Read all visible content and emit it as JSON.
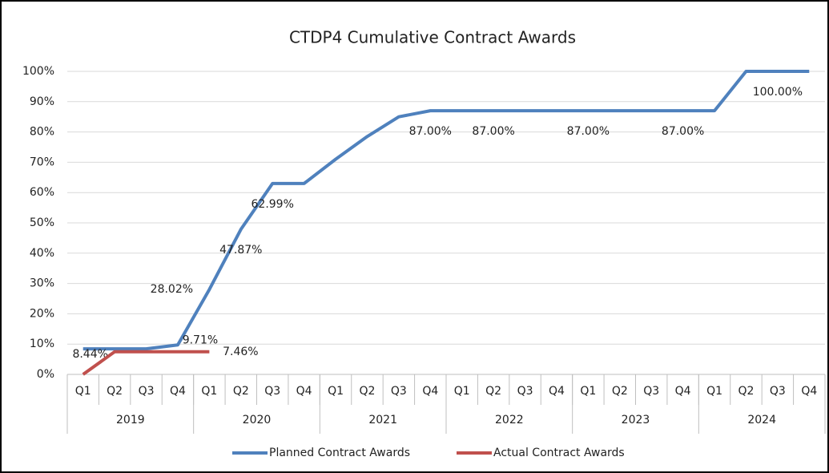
{
  "chart_data": {
    "type": "line",
    "title": "CTDP4 Cumulative Contract Awards",
    "categories": [
      "Q1",
      "Q2",
      "Q3",
      "Q4",
      "Q1",
      "Q2",
      "Q3",
      "Q4",
      "Q1",
      "Q2",
      "Q3",
      "Q4",
      "Q1",
      "Q2",
      "Q3",
      "Q4",
      "Q1",
      "Q2",
      "Q3",
      "Q4",
      "Q1",
      "Q2",
      "Q3",
      "Q4"
    ],
    "category_groups": [
      "2019",
      "2020",
      "2021",
      "2022",
      "2023",
      "2024"
    ],
    "series": [
      {
        "name": "Planned Contract Awards",
        "color": "#4f81bd",
        "values": [
          8.44,
          8.44,
          8.44,
          9.71,
          28.02,
          47.87,
          62.99,
          62.99,
          71,
          78.5,
          85,
          87,
          87,
          87,
          87,
          87,
          87,
          87,
          87,
          87,
          87,
          100,
          100,
          100
        ],
        "value_labels": [
          "8.44%",
          null,
          null,
          "9.71%",
          "28.02%",
          "47.87%",
          "62.99%",
          null,
          null,
          null,
          null,
          "87.00%",
          null,
          "87.00%",
          null,
          null,
          "87.00%",
          null,
          null,
          "87.00%",
          null,
          null,
          "100.00%",
          null
        ]
      },
      {
        "name": "Actual Contract Awards",
        "color": "#c0504d",
        "values": [
          0,
          7.46,
          7.46,
          7.46,
          7.46,
          null,
          null,
          null,
          null,
          null,
          null,
          null,
          null,
          null,
          null,
          null,
          null,
          null,
          null,
          null,
          null,
          null,
          null,
          null
        ],
        "value_labels": [
          null,
          null,
          null,
          null,
          "7.46%",
          null,
          null,
          null,
          null,
          null,
          null,
          null,
          null,
          null,
          null,
          null,
          null,
          null,
          null,
          null,
          null,
          null,
          null,
          null
        ]
      }
    ],
    "ylim": [
      0,
      100
    ],
    "yticks": [
      {
        "value": 0,
        "label": "0%"
      },
      {
        "value": 10,
        "label": "10%"
      },
      {
        "value": 20,
        "label": "20%"
      },
      {
        "value": 30,
        "label": "30%"
      },
      {
        "value": 40,
        "label": "40%"
      },
      {
        "value": 50,
        "label": "50%"
      },
      {
        "value": 60,
        "label": "60%"
      },
      {
        "value": 70,
        "label": "70%"
      },
      {
        "value": 80,
        "label": "80%"
      },
      {
        "value": 90,
        "label": "90%"
      },
      {
        "value": 100,
        "label": "100%"
      }
    ],
    "grid": true,
    "legend": "bottom"
  }
}
